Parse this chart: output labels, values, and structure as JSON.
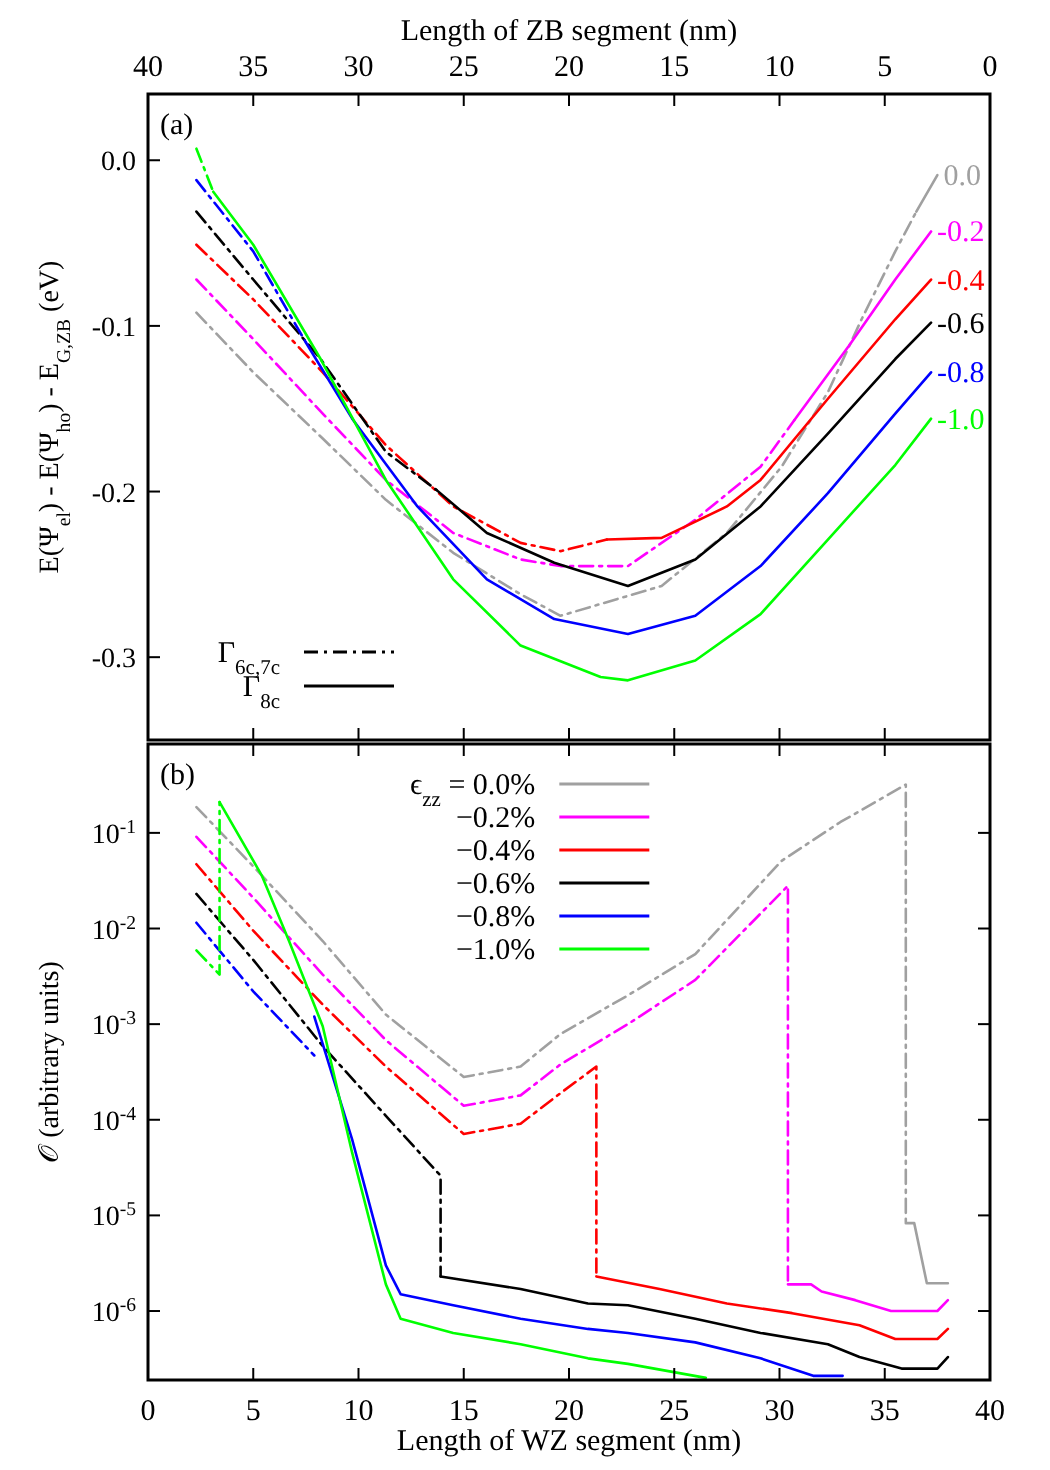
{
  "chart_data": [
    {
      "type": "line",
      "annotations": [
        "(a)"
      ],
      "ylabel": "E(Ψ$_{el}$) - E(Ψ$_{ho}$) - E$_{G,ZB}$ (eV)",
      "x2label": "Length of ZB segment (nm)",
      "xlim": [
        0,
        40
      ],
      "xticks": [
        0,
        5,
        10,
        15,
        20,
        25,
        30,
        35,
        40
      ],
      "x2lim": [
        40,
        0
      ],
      "x2ticks": [
        40,
        35,
        30,
        25,
        20,
        15,
        10,
        5,
        0
      ],
      "ylim": [
        -0.35,
        0.04
      ],
      "yticks": [
        -0.3,
        -0.2,
        -0.1,
        {
          "value": 0,
          "label": "0.0"
        }
      ],
      "tick_labels": "y",
      "legend": "bottom left",
      "series": [
        {
          "color": "#a0a0a0",
          "line_style": "dashdot",
          "x": [
            2.3,
            5,
            8.3,
            11.3,
            14.5,
            17.7,
            19.6,
            24.4,
            27.5,
            30.1,
            32.3,
            33.9,
            35.5,
            36.5
          ],
          "values": [
            -0.092,
            -0.128,
            -0.168,
            -0.205,
            -0.237,
            -0.262,
            -0.275,
            -0.257,
            -0.225,
            -0.185,
            -0.14,
            -0.096,
            -0.055,
            -0.031
          ]
        },
        {
          "name": "0.0",
          "color": "#a0a0a0",
          "line_style": "solid",
          "x": [
            36.5,
            37.5
          ],
          "values": [
            -0.031,
            -0.009
          ]
        },
        {
          "color": "#ff00ff",
          "line_style": "dashdot",
          "x": [
            2.3,
            5,
            8.3,
            11.3,
            14.5,
            17.7,
            19.6,
            22.8,
            26,
            29.1,
            30.7
          ],
          "values": [
            -0.072,
            -0.108,
            -0.153,
            -0.193,
            -0.225,
            -0.241,
            -0.245,
            -0.245,
            -0.217,
            -0.185,
            -0.157
          ]
        },
        {
          "name": "-0.2",
          "color": "#ff00ff",
          "line_style": "solid",
          "x": [
            30.7,
            33.3,
            35.5,
            37.2
          ],
          "values": [
            -0.157,
            -0.112,
            -0.072,
            -0.043
          ]
        },
        {
          "color": "#ff0000",
          "line_style": "dashdot",
          "x": [
            2.3,
            5,
            8.3,
            11.3,
            14.5,
            17.7,
            19.6,
            21.8
          ],
          "values": [
            -0.051,
            -0.084,
            -0.128,
            -0.172,
            -0.209,
            -0.231,
            -0.236,
            -0.229
          ]
        },
        {
          "name": "-0.4",
          "color": "#ff0000",
          "line_style": "solid",
          "x": [
            21.8,
            24.4,
            27.5,
            29.1,
            32.3,
            35.5,
            37.2
          ],
          "values": [
            -0.229,
            -0.228,
            -0.209,
            -0.193,
            -0.144,
            -0.096,
            -0.072
          ]
        },
        {
          "color": "#000000",
          "line_style": "dashdot",
          "x": [
            2.3,
            5,
            8.2,
            11.3,
            13.7
          ],
          "values": [
            -0.031,
            -0.072,
            -0.12,
            -0.176,
            -0.199
          ]
        },
        {
          "name": "-0.6",
          "color": "#000000",
          "line_style": "solid",
          "x": [
            13.7,
            16.1,
            19.3,
            22.8,
            26,
            29.1,
            32.3,
            35.5,
            37.2
          ],
          "values": [
            -0.199,
            -0.225,
            -0.243,
            -0.257,
            -0.241,
            -0.209,
            -0.165,
            -0.12,
            -0.098
          ]
        },
        {
          "color": "#0000ff",
          "line_style": "dashdot",
          "x": [
            2.3,
            5,
            7.5
          ],
          "values": [
            -0.012,
            -0.055,
            -0.11
          ]
        },
        {
          "name": "-0.8",
          "color": "#0000ff",
          "line_style": "solid",
          "x": [
            7.5,
            9.7,
            12.8,
            16.1,
            19.3,
            22.8,
            26,
            29.1,
            32.3,
            35.5,
            37.2
          ],
          "values": [
            -0.11,
            -0.156,
            -0.209,
            -0.253,
            -0.277,
            -0.286,
            -0.275,
            -0.245,
            -0.201,
            -0.153,
            -0.128
          ]
        },
        {
          "color": "#00ff00",
          "line_style": "dashdot",
          "x": [
            2.3,
            3.1
          ],
          "values": [
            0.007,
            -0.019
          ]
        },
        {
          "name": "-1.0",
          "color": "#00ff00",
          "line_style": "solid",
          "x": [
            3.1,
            5,
            8.2,
            11.3,
            14.5,
            17.7,
            21.5,
            22.8,
            26,
            29.1,
            32.3,
            35.5,
            37.2
          ],
          "values": [
            -0.019,
            -0.051,
            -0.12,
            -0.193,
            -0.253,
            -0.293,
            -0.312,
            -0.314,
            -0.302,
            -0.274,
            -0.229,
            -0.184,
            -0.156
          ]
        },
        {
          "name": "Γ$_{6c,7c}$",
          "color": "#000000",
          "line_style": "dashdot"
        },
        {
          "name": "Γ$_{8c}$",
          "color": "#000000",
          "line_style": "solid"
        }
      ]
    },
    {
      "type": "line",
      "annotations": [
        "(b)"
      ],
      "ylabel": "𝒪 (arbitrary units)",
      "xlabel": "Length of WZ segment (nm)",
      "xlim": [
        0,
        40
      ],
      "xticks": [
        0,
        5,
        10,
        15,
        20,
        25,
        30,
        35,
        40
      ],
      "log": true,
      "ylim": [
        1.9e-07,
        0.85
      ],
      "yticks": [
        {
          "value": 1e-06,
          "label": "10$^{-6}$"
        },
        {
          "value": 1e-05,
          "label": "10$^{-5}$"
        },
        {
          "value": 0.0001,
          "label": "10$^{-4}$"
        },
        {
          "value": 0.001,
          "label": "10$^{-3}$"
        },
        {
          "value": 0.01,
          "label": "10$^{-2}$"
        },
        {
          "value": 0.1,
          "label": "10$^{-1}$"
        }
      ],
      "legend": "top",
      "series": [
        {
          "color": "#a0a0a0",
          "line_style": "dashdot",
          "x": [
            2.3,
            5,
            8.3,
            11.3,
            15,
            17.7,
            19.6,
            22.8,
            26,
            30.1,
            32.9,
            36,
            36
          ],
          "values": [
            0.186,
            0.0447,
            0.0074,
            0.00126,
            0.00028,
            0.00036,
            0.00079,
            0.002,
            0.0054,
            0.051,
            0.13,
            0.32,
            8.3e-06
          ]
        },
        {
          "name": "ϵ$_{zz}$ = 0.0%",
          "color": "#a0a0a0",
          "line_style": "solid",
          "x": [
            36,
            36.4,
            37,
            38
          ],
          "values": [
            8.3e-06,
            8.3e-06,
            1.95e-06,
            1.95e-06
          ]
        },
        {
          "color": "#ff00ff",
          "line_style": "dashdot",
          "x": [
            2.3,
            5,
            8.3,
            11.3,
            15,
            17.7,
            19.6,
            22.8,
            26,
            30.4,
            30.4
          ],
          "values": [
            0.091,
            0.021,
            0.0033,
            0.00068,
            0.00014,
            0.00018,
            0.00038,
            0.001,
            0.0029,
            0.028,
            1.9e-06
          ]
        },
        {
          "name": "−0.2%",
          "color": "#ff00ff",
          "line_style": "solid",
          "x": [
            30.4,
            31.5,
            32,
            33.6,
            35.3,
            37.5,
            38
          ],
          "values": [
            1.9e-06,
            1.9e-06,
            1.6e-06,
            1.3e-06,
            1e-06,
            1e-06,
            1.3e-06
          ]
        },
        {
          "color": "#ff0000",
          "line_style": "dashdot",
          "x": [
            2.3,
            5,
            8.3,
            11.3,
            15,
            17.7,
            19.6,
            21.3,
            21.3
          ],
          "values": [
            0.047,
            0.0095,
            0.0016,
            0.00036,
            7.1e-05,
            9.1e-05,
            0.00019,
            0.00036,
            2.3e-06
          ]
        },
        {
          "name": "−0.4%",
          "color": "#ff0000",
          "line_style": "solid",
          "x": [
            21.3,
            24.3,
            27.5,
            30.6,
            33.8,
            35.5,
            37.5,
            38
          ],
          "values": [
            2.3e-06,
            1.7e-06,
            1.2e-06,
            9.5e-07,
            7.1e-07,
            5.1e-07,
            5.1e-07,
            6.5e-07
          ]
        },
        {
          "color": "#000000",
          "line_style": "dashdot",
          "x": [
            2.3,
            5,
            8.3,
            11.3,
            13.9,
            13.9
          ],
          "values": [
            0.023,
            0.0047,
            0.00059,
            0.00011,
            2.6e-05,
            2.3e-06
          ]
        },
        {
          "name": "−0.6%",
          "color": "#000000",
          "line_style": "solid",
          "x": [
            13.9,
            17.7,
            20.9,
            22.8,
            26,
            29.1,
            32.3,
            33.8,
            35.8,
            37.5,
            38
          ],
          "values": [
            2.3e-06,
            1.7e-06,
            1.2e-06,
            1.15e-06,
            8.3e-07,
            5.9e-07,
            4.5e-07,
            3.3e-07,
            2.5e-07,
            2.5e-07,
            3.3e-07
          ]
        },
        {
          "color": "#0000ff",
          "line_style": "dashdot",
          "x": [
            2.3,
            5,
            7.9
          ],
          "values": [
            0.0115,
            0.0022,
            0.00047
          ]
        },
        {
          "name": "−0.8%",
          "color": "#0000ff",
          "line_style": "solid",
          "x": [
            7.9,
            9.7,
            11.3,
            12,
            14.5,
            17.7,
            20.9,
            22.8,
            26,
            29.1,
            31.6,
            33
          ],
          "values": [
            0.0012,
            6.2e-05,
            3e-06,
            1.5e-06,
            1.15e-06,
            8.3e-07,
            6.5e-07,
            5.9e-07,
            4.7e-07,
            3.2e-07,
            2.1e-07,
            2.1e-07
          ]
        },
        {
          "color": "#00ff00",
          "line_style": "dashdot",
          "x": [
            2.3,
            3.4,
            3.4
          ],
          "values": [
            0.0059,
            0.0033,
            0.21
          ]
        },
        {
          "name": "−1.0%",
          "color": "#00ff00",
          "line_style": "solid",
          "x": [
            3.4,
            5.4,
            6.7,
            8.3,
            9.7,
            11.3,
            12,
            14.5,
            17.7,
            20.9,
            22.8,
            26.5
          ],
          "values": [
            0.21,
            0.036,
            0.0074,
            0.00095,
            4.5e-05,
            1.9e-06,
            8.3e-07,
            5.9e-07,
            4.5e-07,
            3.2e-07,
            2.8e-07,
            2e-07
          ]
        }
      ]
    }
  ]
}
